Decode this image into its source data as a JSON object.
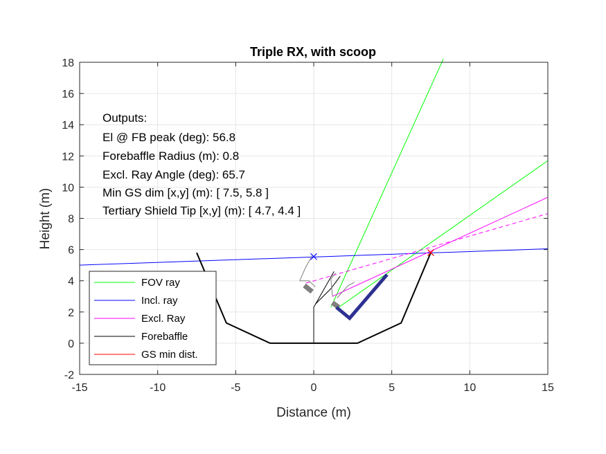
{
  "chart_data": {
    "type": "line",
    "title": "Triple RX, with scoop",
    "xlabel": "Distance (m)",
    "ylabel": "Height (m)",
    "xlim": [
      -15,
      15
    ],
    "ylim": [
      -2,
      18
    ],
    "xticks": [
      -15,
      -10,
      -5,
      0,
      5,
      10,
      15
    ],
    "yticks": [
      -2,
      0,
      2,
      4,
      6,
      8,
      10,
      12,
      14,
      16,
      18
    ],
    "grid": true,
    "legend_position": "bottom-left",
    "outputs": {
      "header": "Outputs:",
      "lines": [
        "El @ FB peak (deg): 56.8",
        "Forebaffle Radius (m): 0.8",
        "Excl. Ray Angle (deg): 65.7",
        "Min GS dim [x,y] (m): [ 7.5, 5.8 ]",
        "Tertiary Shield Tip [x,y] (m): [ 4.7, 4.4 ]"
      ]
    },
    "legend": [
      {
        "label": "FOV ray",
        "color": "#00ff00"
      },
      {
        "label": "Incl. ray",
        "color": "#0000ff"
      },
      {
        "label": "Excl. Ray",
        "color": "#ff00ff"
      },
      {
        "label": "Forebaffle",
        "color": "#000000"
      },
      {
        "label": "GS min dist.",
        "color": "#ff0000"
      }
    ],
    "series": [
      {
        "name": "FOV ray",
        "color": "#00ff00",
        "width": 1,
        "points": [
          [
            1.1,
            2.3
          ],
          [
            8.3,
            18.2
          ]
        ]
      },
      {
        "name": "FOV ray",
        "color": "#00ff00",
        "width": 1,
        "points": [
          [
            1.6,
            2.3
          ],
          [
            15.0,
            11.7
          ]
        ]
      },
      {
        "name": "Incl. ray",
        "color": "#0000ff",
        "width": 1,
        "points": [
          [
            -15.0,
            5.0
          ],
          [
            15.0,
            6.05
          ]
        ]
      },
      {
        "name": "Excl. Ray",
        "color": "#ff00ff",
        "width": 1,
        "points": [
          [
            1.2,
            3.0
          ],
          [
            15.0,
            9.35
          ]
        ]
      },
      {
        "name": "Excl. Ray",
        "color": "#ff00ff",
        "width": 1,
        "dash": "6,4",
        "points": [
          [
            -0.5,
            3.85
          ],
          [
            15.0,
            8.3
          ]
        ]
      },
      {
        "name": "Ground screen",
        "color": "#000000",
        "width": 2,
        "points": [
          [
            -7.5,
            5.8
          ],
          [
            -5.6,
            1.3
          ],
          [
            -2.8,
            0.0
          ],
          [
            2.8,
            0.0
          ],
          [
            5.6,
            1.3
          ],
          [
            7.5,
            5.8
          ]
        ]
      },
      {
        "name": "Mount post",
        "color": "#000000",
        "width": 1,
        "points": [
          [
            0.0,
            0.0
          ],
          [
            0.0,
            2.3
          ]
        ]
      },
      {
        "name": "Forebaffle",
        "color": "#000000",
        "width": 1,
        "points": [
          [
            0.0,
            2.1
          ],
          [
            0.0,
            2.3
          ],
          [
            1.3,
            4.6
          ]
        ]
      },
      {
        "name": "Forebaffle",
        "color": "#000000",
        "width": 1,
        "points": [
          [
            0.1,
            2.5
          ],
          [
            1.1,
            3.5
          ],
          [
            1.7,
            4.3
          ]
        ]
      },
      {
        "name": "Receiver outline",
        "color": "#7f7f7f",
        "width": 1,
        "points": [
          [
            -0.9,
            4.0
          ],
          [
            -0.5,
            4.9
          ],
          [
            -0.1,
            5.6
          ]
        ]
      },
      {
        "name": "Receiver outline",
        "color": "#7f7f7f",
        "width": 1,
        "points": [
          [
            -0.9,
            4.0
          ],
          [
            -0.3,
            4.0
          ],
          [
            0.1,
            3.6
          ]
        ]
      },
      {
        "name": "Receiver outline",
        "color": "#7f7f7f",
        "width": 1,
        "points": [
          [
            1.2,
            3.0
          ],
          [
            1.1,
            4.1
          ],
          [
            1.4,
            4.5
          ]
        ]
      },
      {
        "name": "Receiver outline",
        "color": "#7f7f7f",
        "width": 1,
        "points": [
          [
            1.5,
            2.9
          ],
          [
            2.2,
            3.7
          ],
          [
            2.6,
            3.9
          ]
        ]
      },
      {
        "name": "Receiver window",
        "color": "#7f7f7f",
        "width": 7,
        "points": [
          [
            -0.6,
            3.7
          ],
          [
            -0.1,
            3.3
          ]
        ]
      },
      {
        "name": "Receiver window",
        "color": "#7f7f7f",
        "width": 7,
        "points": [
          [
            1.2,
            2.6
          ],
          [
            1.6,
            2.3
          ]
        ]
      },
      {
        "name": "Tertiary shield",
        "color": "#2e3192",
        "width": 5,
        "points": [
          [
            1.45,
            2.3
          ],
          [
            2.3,
            1.6
          ],
          [
            4.7,
            4.4
          ]
        ]
      }
    ],
    "markers": [
      {
        "name": "Incl. ray",
        "shape": "x",
        "color": "#0000ff",
        "x": 0.0,
        "y": 5.55
      },
      {
        "name": "GS min dist.",
        "shape": "x",
        "color": "#ff0000",
        "x": 7.5,
        "y": 5.8
      }
    ]
  }
}
